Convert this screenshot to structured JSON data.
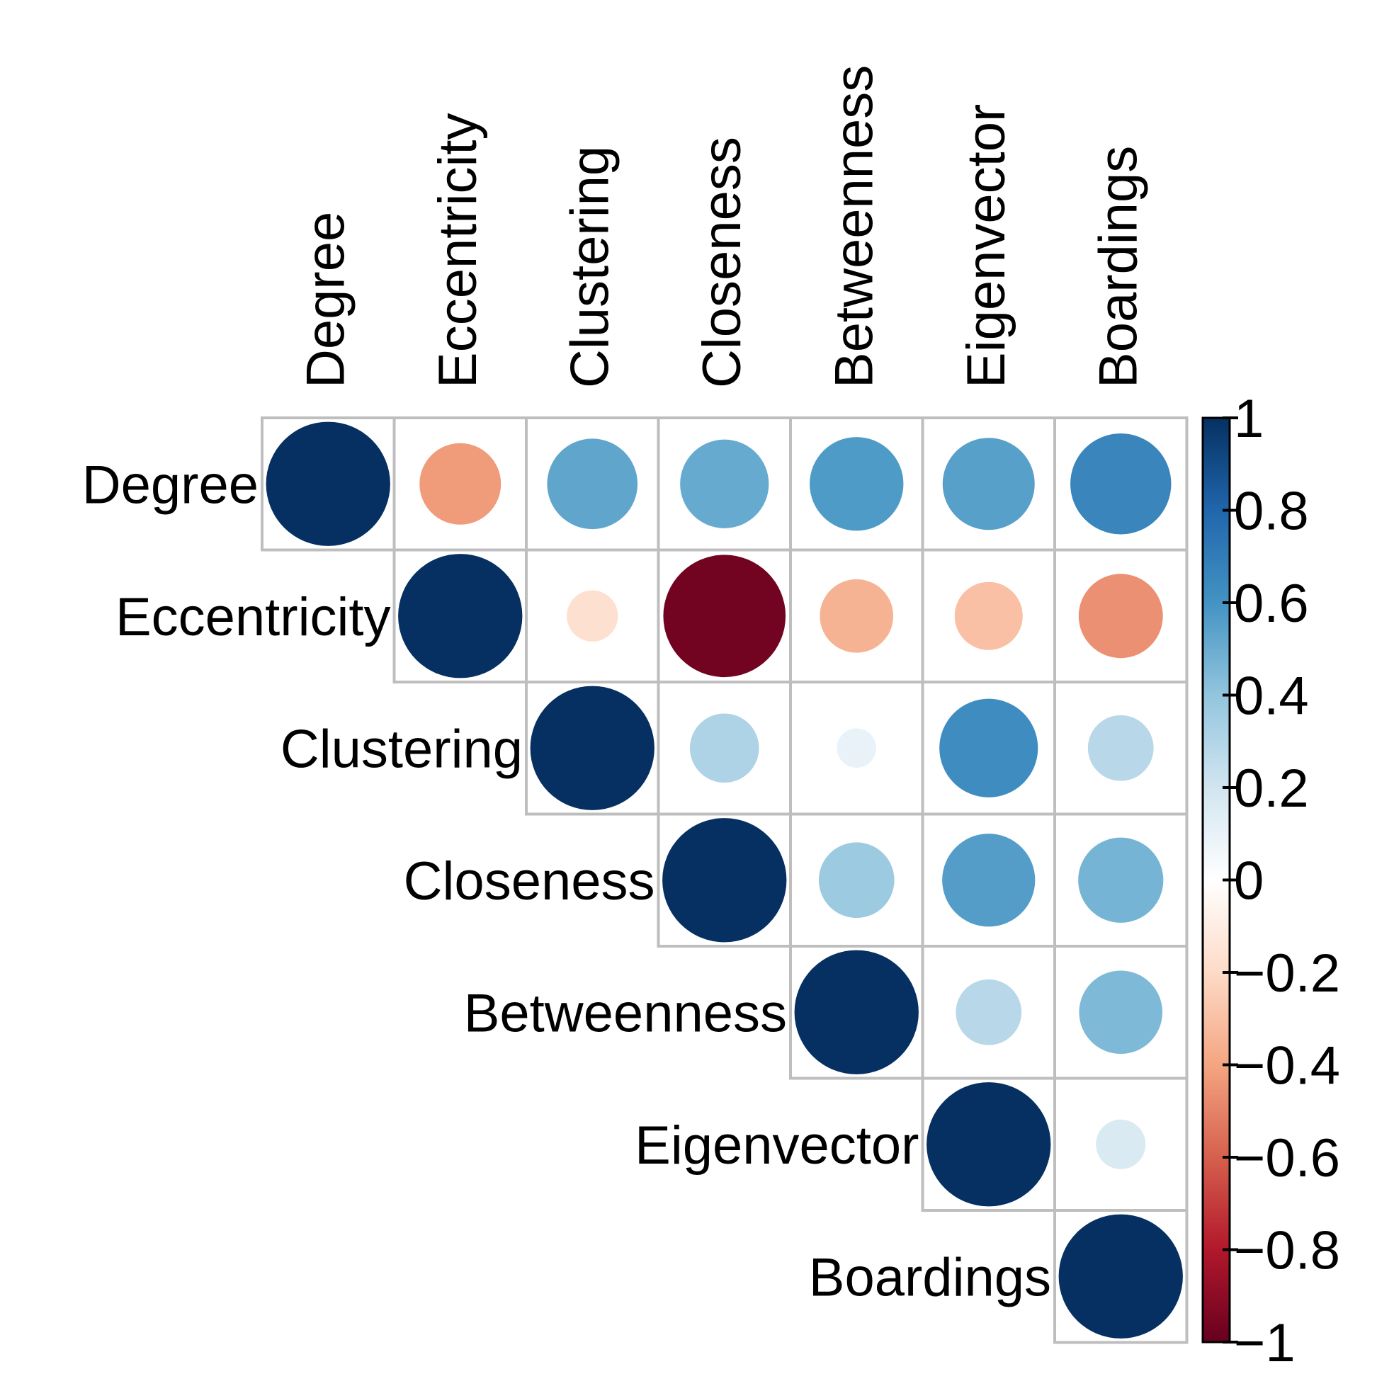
{
  "chart_data": {
    "type": "heatmap",
    "variables": [
      "Degree",
      "Eccentricity",
      "Clustering",
      "Closeness",
      "Betweenness",
      "Eigenvector",
      "Boardings"
    ],
    "matrix": [
      [
        1.0,
        -0.43,
        0.53,
        0.51,
        0.57,
        0.55,
        0.66
      ],
      [
        -0.43,
        1.0,
        -0.17,
        -0.97,
        -0.35,
        -0.3,
        -0.46
      ],
      [
        0.53,
        -0.17,
        1.0,
        0.31,
        0.1,
        0.63,
        0.28
      ],
      [
        0.51,
        -0.97,
        0.31,
        1.0,
        0.37,
        0.56,
        0.47
      ],
      [
        0.57,
        -0.35,
        0.1,
        0.37,
        1.0,
        0.28,
        0.45
      ],
      [
        0.55,
        -0.3,
        0.63,
        0.56,
        0.28,
        1.0,
        0.16
      ],
      [
        0.66,
        -0.46,
        0.28,
        0.47,
        0.45,
        0.16,
        1.0
      ]
    ],
    "display": "upper",
    "glyph": "circle",
    "colorbar": {
      "ticks": [
        "1",
        "0.8",
        "0.6",
        "0.4",
        "0.2",
        "0",
        "−0.2",
        "−0.4",
        "−0.6",
        "−0.8",
        "−1"
      ],
      "range": [
        -1,
        1
      ],
      "high_color": "#053061",
      "mid_color": "#ffffff",
      "low_color": "#67001f"
    },
    "grid_color": "#bebebe"
  }
}
